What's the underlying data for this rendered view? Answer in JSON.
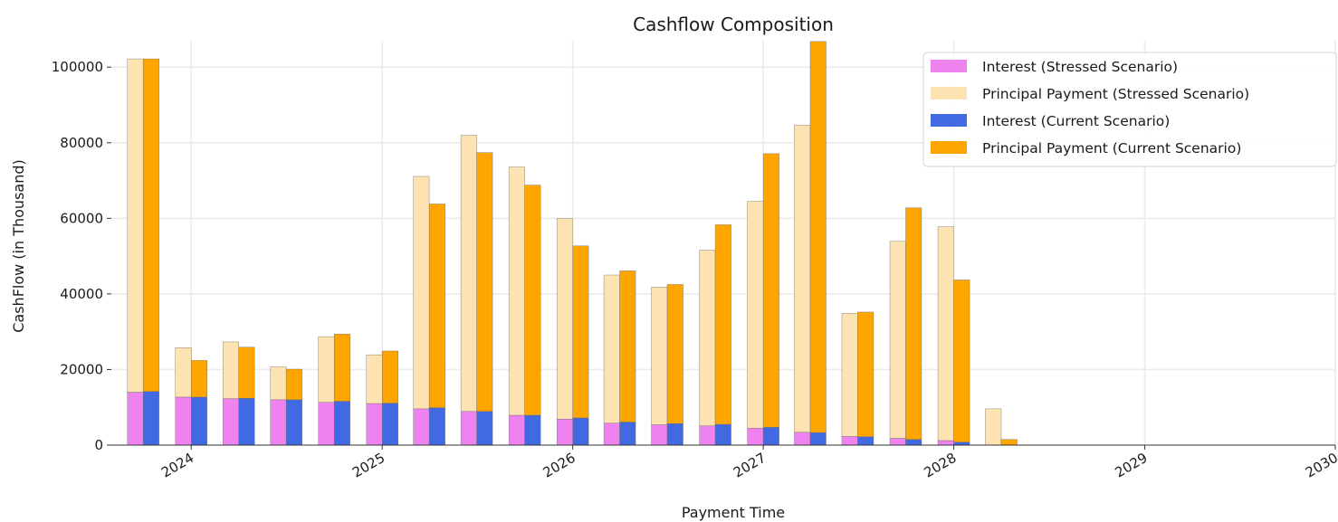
{
  "chart_data": {
    "type": "bar",
    "stacked": true,
    "grouped": true,
    "title": "Cashflow Composition",
    "xlabel": "Payment Time",
    "ylabel": "CashFlow (in Thousand)",
    "ylim": [
      0,
      107000
    ],
    "yticks": [
      0,
      20000,
      40000,
      60000,
      80000,
      100000
    ],
    "xlim": [
      "2023-08-01",
      "2030-01-01"
    ],
    "xticks": [
      "2024",
      "2025",
      "2026",
      "2027",
      "2028",
      "2029",
      "2030"
    ],
    "grid": true,
    "legend_position": "top-right",
    "periods": [
      "2023-10-01",
      "2024-01-01",
      "2024-04-01",
      "2024-07-01",
      "2024-10-01",
      "2025-01-01",
      "2025-04-01",
      "2025-07-01",
      "2025-10-01",
      "2026-01-01",
      "2026-04-01",
      "2026-07-01",
      "2026-10-01",
      "2027-01-01",
      "2027-04-01",
      "2027-07-01",
      "2027-10-01",
      "2028-01-01",
      "2028-04-01"
    ],
    "series": [
      {
        "name": "Interest (Stressed Scenario)",
        "group": "stressed",
        "color": "#ee82ee",
        "values": [
          14000,
          12700,
          12300,
          12000,
          11300,
          11000,
          9600,
          8900,
          7900,
          6900,
          5800,
          5400,
          5100,
          4500,
          3400,
          2300,
          1800,
          1200,
          0
        ]
      },
      {
        "name": "Principal Payment (Stressed Scenario)",
        "group": "stressed",
        "color": "#fde3b1",
        "values": [
          88200,
          13100,
          15000,
          8700,
          17400,
          12900,
          61500,
          73100,
          65700,
          53100,
          39200,
          36400,
          46500,
          60000,
          81300,
          32600,
          52100,
          56600,
          9600
        ]
      },
      {
        "name": "Interest (Current Scenario)",
        "group": "current",
        "color": "#4169e1",
        "values": [
          14200,
          12700,
          12400,
          12000,
          11600,
          11100,
          9900,
          8900,
          7900,
          7200,
          6100,
          5700,
          5500,
          4700,
          3300,
          2200,
          1500,
          800,
          0
        ]
      },
      {
        "name": "Principal Payment (Current Scenario)",
        "group": "current",
        "color": "#ffa500",
        "values": [
          88000,
          9700,
          13500,
          8100,
          17800,
          13800,
          53900,
          68500,
          60900,
          45500,
          40000,
          36800,
          52800,
          72400,
          103500,
          33000,
          61300,
          42900,
          1500
        ]
      }
    ]
  }
}
